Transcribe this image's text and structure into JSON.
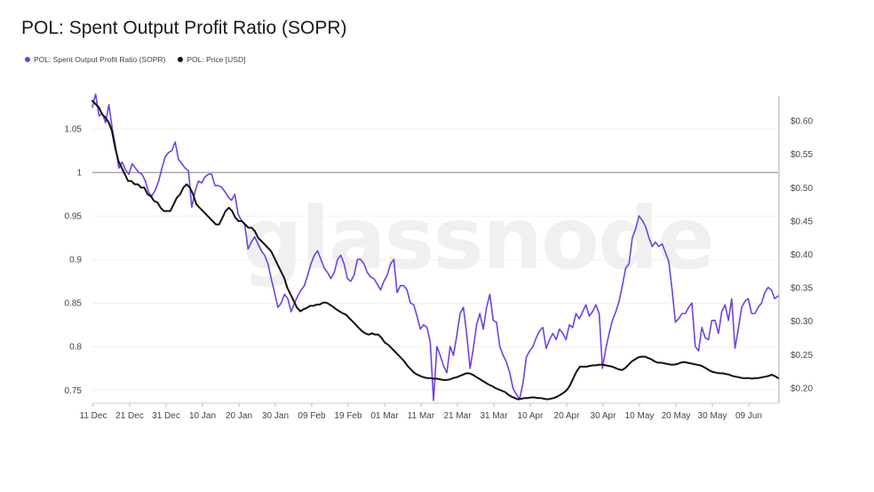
{
  "title": "POL: Spent Output Profit Ratio (SOPR)",
  "legend": [
    {
      "label": "POL: Spent Output Profit Ratio (SOPR)",
      "color": "#6f42e0"
    },
    {
      "label": "POL: Price [USD]",
      "color": "#111111"
    }
  ],
  "watermark": "glassnode",
  "chart_data": {
    "type": "line",
    "x_labels": [
      "11 Dec",
      "21 Dec",
      "31 Dec",
      "10 Jan",
      "20 Jan",
      "30 Jan",
      "09 Feb",
      "19 Feb",
      "01 Mar",
      "11 Mar",
      "21 Mar",
      "31 Mar",
      "10 Apr",
      "20 Apr",
      "30 Apr",
      "10 May",
      "20 May",
      "30 May",
      "09 Jun"
    ],
    "y_left_ticks": [
      "0.75",
      "0.8",
      "0.85",
      "0.9",
      "0.95",
      "1",
      "1.05"
    ],
    "y_right_ticks": [
      "$0.20",
      "$0.25",
      "$0.30",
      "$0.35",
      "$0.40",
      "$0.45",
      "$0.50",
      "$0.55",
      "$0.60"
    ],
    "y_left_range": [
      0.737,
      1.09
    ],
    "y_right_range": [
      0.18,
      0.64
    ],
    "reference_line_left": 1.0,
    "grid": true,
    "legend_position": "top-left",
    "series": [
      {
        "name": "POL: Spent Output Profit Ratio (SOPR)",
        "axis": "left",
        "color": "#6f42e0",
        "values": [
          1.075,
          1.09,
          1.065,
          1.068,
          1.057,
          1.078,
          1.05,
          1.03,
          1.005,
          1.012,
          1.003,
          0.998,
          1.01,
          1.005,
          1.0,
          0.998,
          0.99,
          0.977,
          0.973,
          0.98,
          0.99,
          1.005,
          1.018,
          1.023,
          1.025,
          1.035,
          1.015,
          1.01,
          1.005,
          1.002,
          0.96,
          0.978,
          0.99,
          0.988,
          0.995,
          0.998,
          0.998,
          0.985,
          0.985,
          0.983,
          0.978,
          0.972,
          0.968,
          0.975,
          0.952,
          0.945,
          0.94,
          0.912,
          0.92,
          0.926,
          0.918,
          0.91,
          0.905,
          0.895,
          0.878,
          0.862,
          0.845,
          0.85,
          0.86,
          0.855,
          0.84,
          0.85,
          0.858,
          0.865,
          0.87,
          0.882,
          0.895,
          0.905,
          0.91,
          0.9,
          0.89,
          0.885,
          0.878,
          0.885,
          0.9,
          0.905,
          0.895,
          0.878,
          0.875,
          0.882,
          0.9,
          0.9,
          0.895,
          0.885,
          0.88,
          0.878,
          0.872,
          0.865,
          0.875,
          0.882,
          0.895,
          0.9,
          0.862,
          0.87,
          0.87,
          0.865,
          0.85,
          0.848,
          0.835,
          0.82,
          0.825,
          0.822,
          0.805,
          0.738,
          0.8,
          0.79,
          0.778,
          0.77,
          0.8,
          0.79,
          0.812,
          0.838,
          0.845,
          0.815,
          0.775,
          0.798,
          0.825,
          0.838,
          0.82,
          0.845,
          0.86,
          0.83,
          0.828,
          0.8,
          0.79,
          0.782,
          0.77,
          0.752,
          0.745,
          0.74,
          0.758,
          0.788,
          0.795,
          0.8,
          0.81,
          0.818,
          0.822,
          0.798,
          0.808,
          0.815,
          0.808,
          0.82,
          0.815,
          0.808,
          0.825,
          0.822,
          0.838,
          0.832,
          0.84,
          0.848,
          0.835,
          0.84,
          0.848,
          0.838,
          0.775,
          0.798,
          0.815,
          0.83,
          0.84,
          0.852,
          0.87,
          0.89,
          0.895,
          0.925,
          0.935,
          0.95,
          0.945,
          0.938,
          0.925,
          0.915,
          0.92,
          0.915,
          0.918,
          0.908,
          0.898,
          0.865,
          0.828,
          0.832,
          0.838,
          0.838,
          0.845,
          0.85,
          0.8,
          0.795,
          0.822,
          0.81,
          0.808,
          0.83,
          0.83,
          0.815,
          0.84,
          0.848,
          0.83,
          0.855,
          0.798,
          0.82,
          0.845,
          0.852,
          0.855,
          0.838,
          0.838,
          0.845,
          0.85,
          0.862,
          0.868,
          0.865,
          0.855,
          0.858
        ]
      },
      {
        "name": "POL: Price [USD]",
        "axis": "right",
        "color": "#111111",
        "values": [
          0.63,
          0.625,
          0.62,
          0.61,
          0.605,
          0.598,
          0.585,
          0.56,
          0.54,
          0.53,
          0.52,
          0.51,
          0.51,
          0.505,
          0.505,
          0.5,
          0.5,
          0.49,
          0.487,
          0.48,
          0.478,
          0.47,
          0.465,
          0.465,
          0.465,
          0.475,
          0.485,
          0.49,
          0.5,
          0.505,
          0.5,
          0.49,
          0.475,
          0.47,
          0.465,
          0.46,
          0.455,
          0.45,
          0.445,
          0.445,
          0.455,
          0.465,
          0.47,
          0.465,
          0.455,
          0.45,
          0.45,
          0.445,
          0.44,
          0.44,
          0.435,
          0.425,
          0.42,
          0.415,
          0.41,
          0.405,
          0.395,
          0.385,
          0.375,
          0.365,
          0.35,
          0.34,
          0.33,
          0.32,
          0.315,
          0.318,
          0.32,
          0.323,
          0.323,
          0.325,
          0.325,
          0.328,
          0.328,
          0.325,
          0.322,
          0.318,
          0.315,
          0.312,
          0.31,
          0.305,
          0.3,
          0.295,
          0.29,
          0.285,
          0.282,
          0.28,
          0.282,
          0.28,
          0.28,
          0.275,
          0.268,
          0.265,
          0.26,
          0.255,
          0.25,
          0.245,
          0.24,
          0.233,
          0.228,
          0.223,
          0.22,
          0.218,
          0.216,
          0.215,
          0.215,
          0.214,
          0.214,
          0.213,
          0.212,
          0.212,
          0.213,
          0.215,
          0.216,
          0.218,
          0.22,
          0.222,
          0.222,
          0.22,
          0.217,
          0.214,
          0.211,
          0.208,
          0.205,
          0.203,
          0.2,
          0.198,
          0.196,
          0.194,
          0.19,
          0.187,
          0.185,
          0.183,
          0.184,
          0.185,
          0.185,
          0.186,
          0.186,
          0.185,
          0.185,
          0.184,
          0.183,
          0.184,
          0.185,
          0.187,
          0.19,
          0.193,
          0.197,
          0.204,
          0.215,
          0.225,
          0.232,
          0.232,
          0.232,
          0.233,
          0.234,
          0.234,
          0.235,
          0.235,
          0.234,
          0.233,
          0.232,
          0.23,
          0.228,
          0.227,
          0.23,
          0.235,
          0.24,
          0.243,
          0.246,
          0.247,
          0.247,
          0.245,
          0.243,
          0.24,
          0.238,
          0.238,
          0.237,
          0.236,
          0.235,
          0.235,
          0.236,
          0.238,
          0.239,
          0.238,
          0.237,
          0.236,
          0.235,
          0.234,
          0.232,
          0.229,
          0.226,
          0.224,
          0.223,
          0.222,
          0.222,
          0.221,
          0.22,
          0.218,
          0.217,
          0.216,
          0.215,
          0.215,
          0.215,
          0.214,
          0.215,
          0.215,
          0.216,
          0.217,
          0.218,
          0.22,
          0.218,
          0.215
        ]
      }
    ]
  }
}
